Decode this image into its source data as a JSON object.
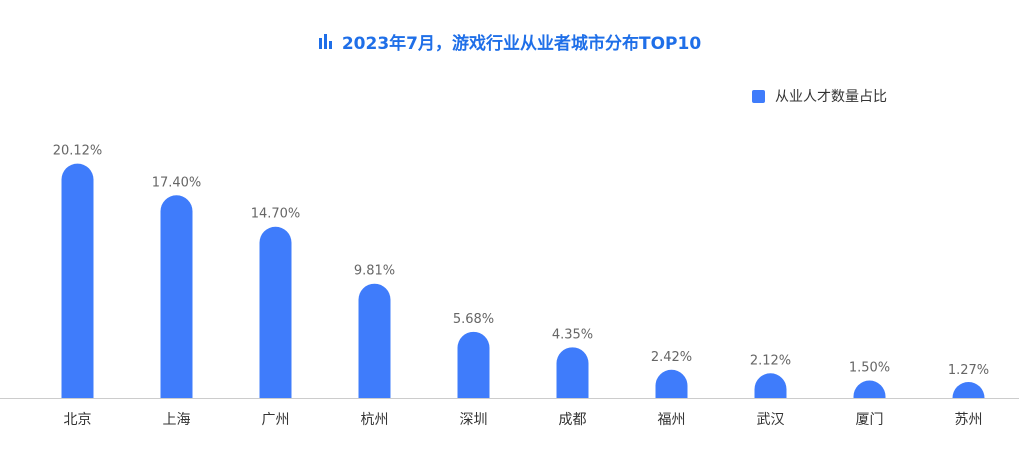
{
  "title": "2023年7月，游戏行业从业者城市分布TOP10",
  "title_icon": "bar-chart-icon",
  "colors": {
    "title": "#1f6fe8",
    "bar": "#3f7cfb",
    "axis": "#cccccc",
    "value_label": "#666666",
    "category_label": "#333333"
  },
  "chart_data": {
    "type": "bar",
    "title": "2023年7月，游戏行业从业者城市分布TOP10",
    "xlabel": "",
    "ylabel": "",
    "ylim": [
      0,
      21
    ],
    "grid": false,
    "legend_position": "top-right",
    "categories": [
      "北京",
      "上海",
      "广州",
      "杭州",
      "深圳",
      "成都",
      "福州",
      "武汉",
      "厦门",
      "苏州"
    ],
    "series": [
      {
        "name": "从业人才数量占比",
        "values": [
          20.12,
          17.4,
          14.7,
          9.81,
          5.68,
          4.35,
          2.42,
          2.12,
          1.5,
          1.27
        ],
        "labels": [
          "20.12%",
          "17.40%",
          "14.70%",
          "9.81%",
          "5.68%",
          "4.35%",
          "2.42%",
          "2.12%",
          "1.50%",
          "1.27%"
        ]
      }
    ]
  }
}
